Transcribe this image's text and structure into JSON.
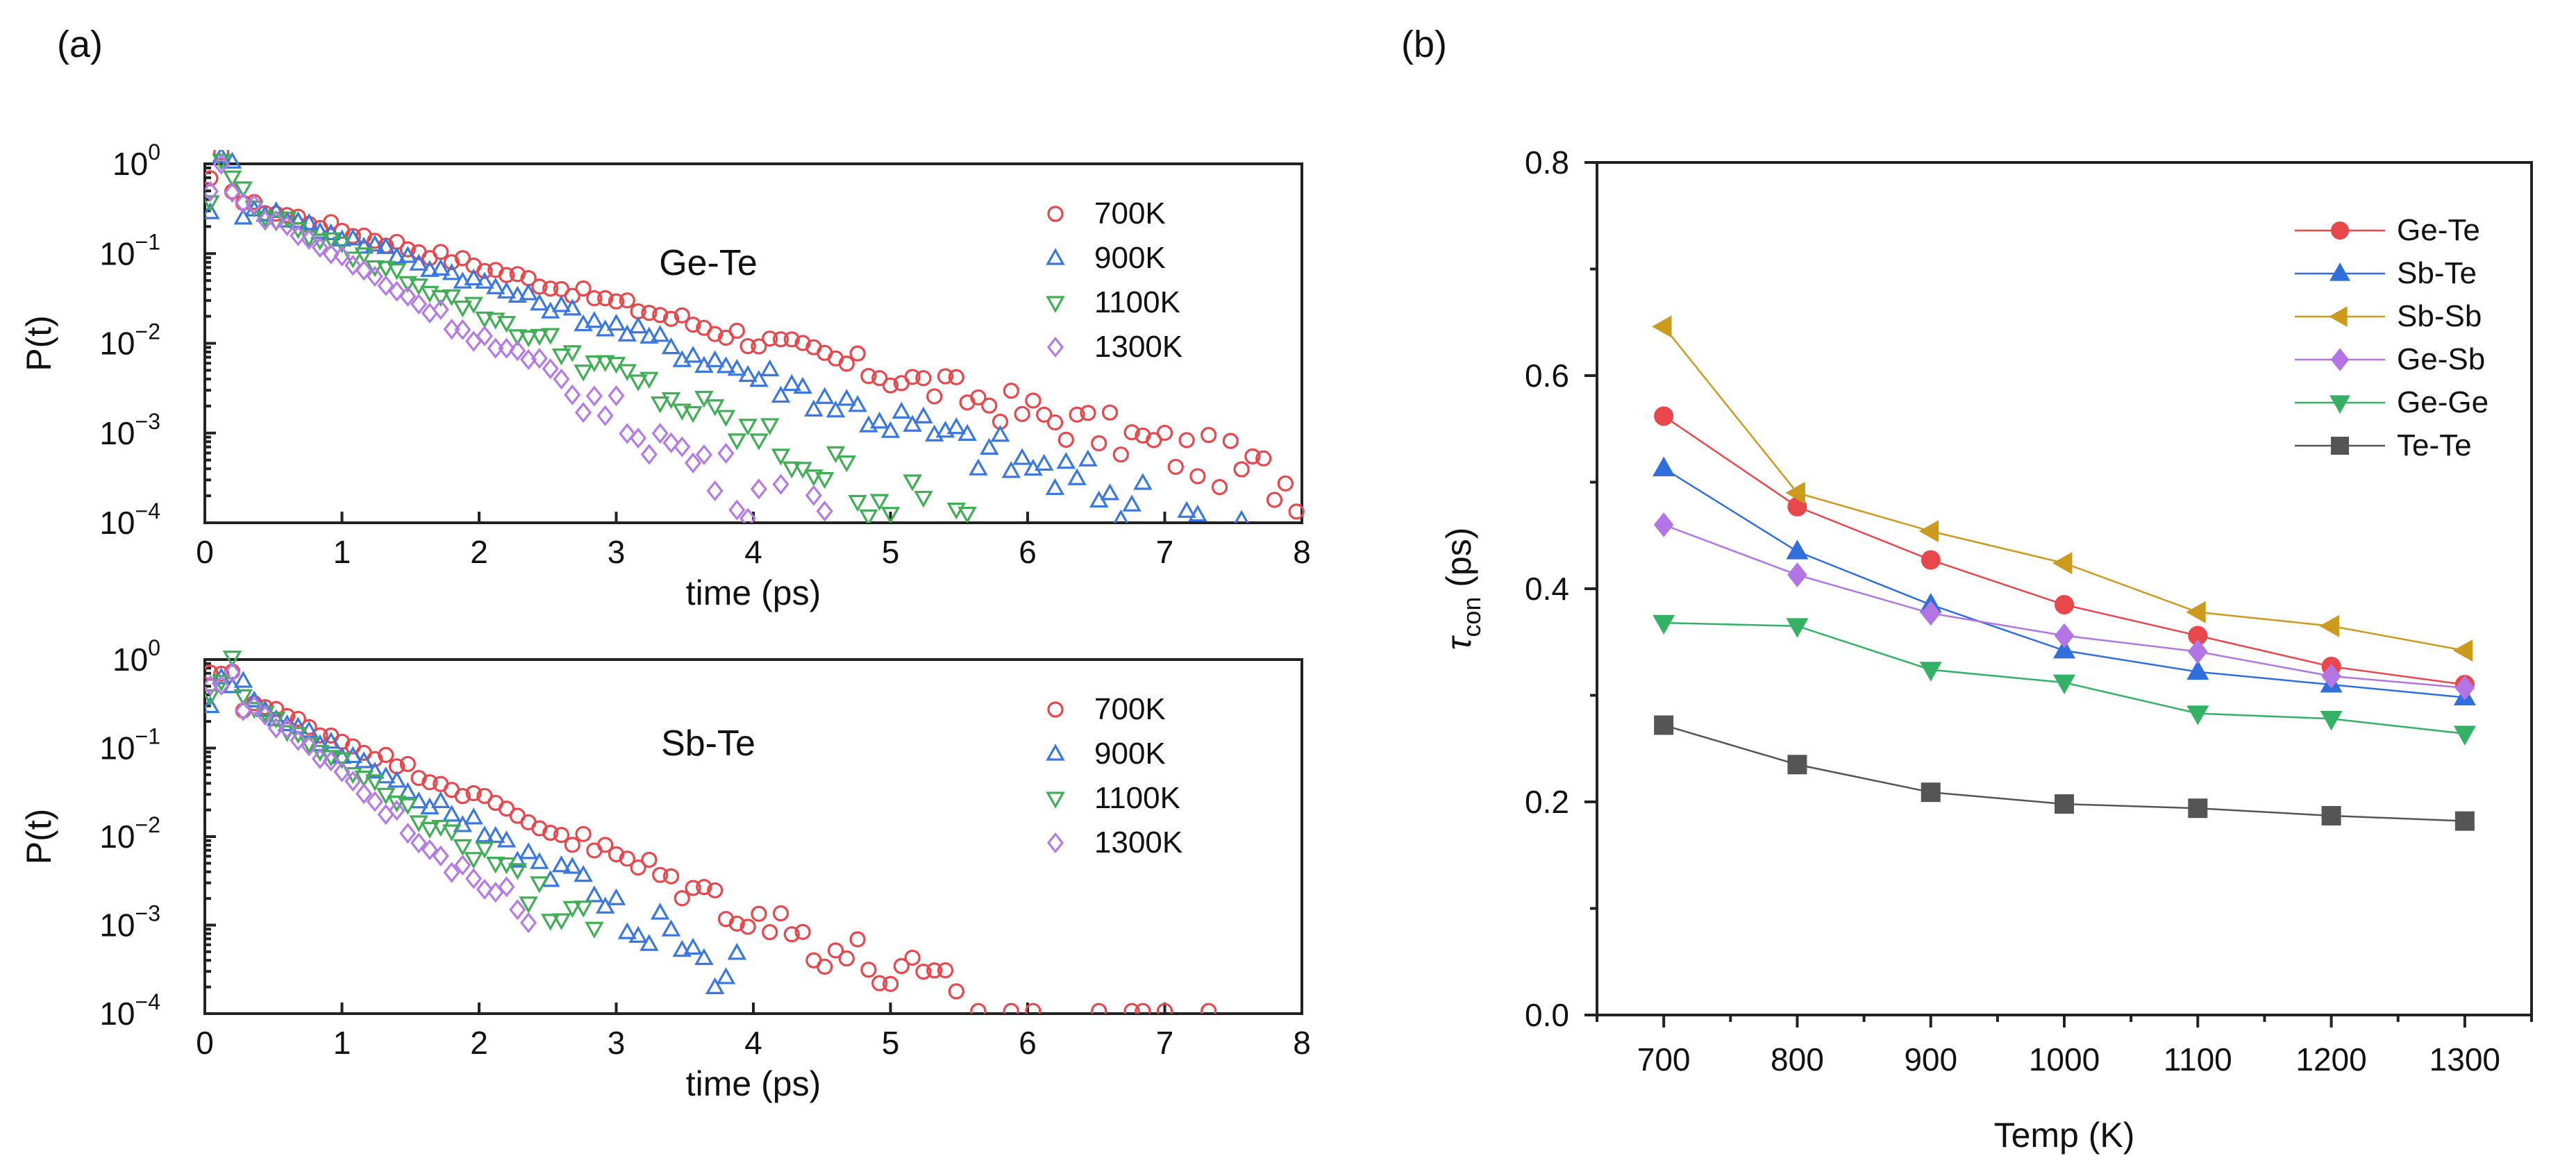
{
  "panels": {
    "a": "(a)",
    "b": "(b)"
  },
  "chart_data": [
    {
      "type": "scatter",
      "id": "top",
      "annotation": "Ge-Te",
      "xlabel": "time (ps)",
      "ylabel": "P(t)",
      "xlim": [
        0,
        8
      ],
      "ylim_log10": [
        -4,
        0
      ],
      "xticks": [
        "0",
        "1",
        "2",
        "3",
        "4",
        "5",
        "6",
        "7",
        "8"
      ],
      "yticks": [
        {
          "base": "10",
          "exp": "0"
        },
        {
          "base": "10",
          "exp": "−1"
        },
        {
          "base": "10",
          "exp": "−2"
        },
        {
          "base": "10",
          "exp": "−3"
        },
        {
          "base": "10",
          "exp": "−4"
        }
      ],
      "series": [
        {
          "name": "700K",
          "color": "#e8474b",
          "marker": "circle",
          "decay_tau": 1.07,
          "end": 8.0
        },
        {
          "name": "900K",
          "color": "#3a78e0",
          "marker": "triangle-up",
          "decay_tau": 0.85,
          "end": 7.6
        },
        {
          "name": "1100K",
          "color": "#3fae55",
          "marker": "triangle-down",
          "decay_tau": 0.62,
          "end": 5.8
        },
        {
          "name": "1300K",
          "color": "#b47ae6",
          "marker": "diamond",
          "decay_tau": 0.5,
          "end": 4.6
        }
      ]
    },
    {
      "type": "scatter",
      "id": "bottom",
      "annotation": "Sb-Te",
      "xlabel": "time (ps)",
      "ylabel": "P(t)",
      "xlim": [
        0,
        8
      ],
      "ylim_log10": [
        -4,
        0
      ],
      "xticks": [
        "0",
        "1",
        "2",
        "3",
        "4",
        "5",
        "6",
        "7",
        "8"
      ],
      "yticks": [
        {
          "base": "10",
          "exp": "0"
        },
        {
          "base": "10",
          "exp": "−1"
        },
        {
          "base": "10",
          "exp": "−2"
        },
        {
          "base": "10",
          "exp": "−3"
        },
        {
          "base": "10",
          "exp": "−4"
        }
      ],
      "series": [
        {
          "name": "700K",
          "color": "#e8474b",
          "marker": "circle",
          "decay_tau": 0.66,
          "end": 7.4
        },
        {
          "name": "900K",
          "color": "#3a78e0",
          "marker": "triangle-up",
          "decay_tau": 0.5,
          "end": 3.9
        },
        {
          "name": "1100K",
          "color": "#3fae55",
          "marker": "triangle-down",
          "decay_tau": 0.42,
          "end": 2.9
        },
        {
          "name": "1300K",
          "color": "#b47ae6",
          "marker": "diamond",
          "decay_tau": 0.36,
          "end": 2.4
        }
      ]
    },
    {
      "type": "line",
      "id": "tau",
      "xlabel": "Temp (K)",
      "ylabel_main": "τ",
      "ylabel_sub": "con",
      "ylabel_tail": " (ps)",
      "xlim": [
        650,
        1350
      ],
      "ylim": [
        0.0,
        0.8
      ],
      "xticks": [
        700,
        800,
        900,
        1000,
        1100,
        1200,
        1300
      ],
      "yticks": [
        "0.0",
        "0.2",
        "0.4",
        "0.6",
        "0.8"
      ],
      "x": [
        700,
        800,
        900,
        1000,
        1100,
        1200,
        1300
      ],
      "series": [
        {
          "name": "Ge-Te",
          "color": "#e8474b",
          "marker": "circle",
          "values": [
            0.562,
            0.477,
            0.427,
            0.385,
            0.356,
            0.327,
            0.31
          ]
        },
        {
          "name": "Sb-Te",
          "color": "#2f6fdc",
          "marker": "triangle-up",
          "values": [
            0.513,
            0.435,
            0.385,
            0.342,
            0.322,
            0.31,
            0.298
          ]
        },
        {
          "name": "Sb-Sb",
          "color": "#cc9a1c",
          "marker": "triangle-left",
          "values": [
            0.646,
            0.49,
            0.454,
            0.424,
            0.378,
            0.365,
            0.342
          ]
        },
        {
          "name": "Ge-Sb",
          "color": "#b275e3",
          "marker": "diamond",
          "values": [
            0.46,
            0.413,
            0.377,
            0.356,
            0.341,
            0.318,
            0.307
          ]
        },
        {
          "name": "Ge-Ge",
          "color": "#33b266",
          "marker": "triangle-down",
          "values": [
            0.368,
            0.365,
            0.324,
            0.312,
            0.283,
            0.278,
            0.264
          ]
        },
        {
          "name": "Te-Te",
          "color": "#555555",
          "marker": "square",
          "values": [
            0.272,
            0.235,
            0.209,
            0.198,
            0.194,
            0.187,
            0.182
          ]
        }
      ]
    }
  ]
}
